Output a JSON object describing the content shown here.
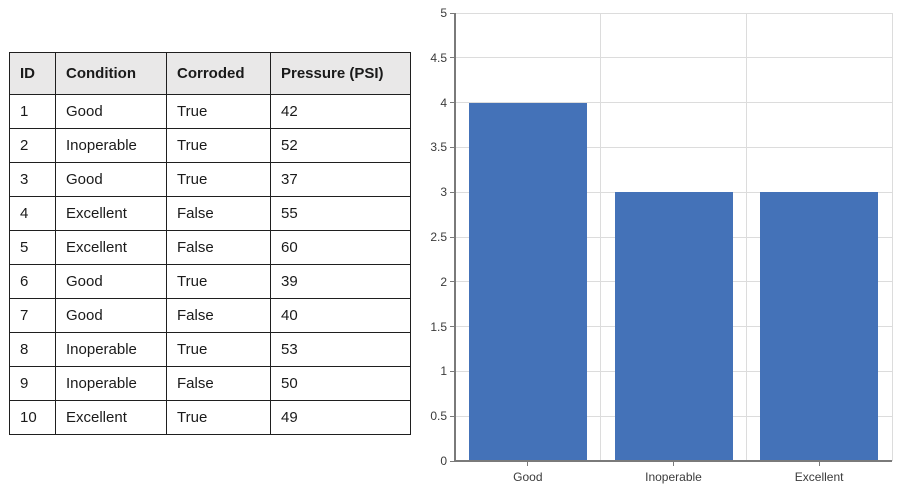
{
  "table": {
    "columns": [
      "ID",
      "Condition",
      "Corroded",
      "Pressure (PSI)"
    ],
    "rows": [
      [
        "1",
        "Good",
        "True",
        "42"
      ],
      [
        "2",
        "Inoperable",
        "True",
        "52"
      ],
      [
        "3",
        "Good",
        "True",
        "37"
      ],
      [
        "4",
        "Excellent",
        "False",
        "55"
      ],
      [
        "5",
        "Excellent",
        "False",
        "60"
      ],
      [
        "6",
        "Good",
        "True",
        "39"
      ],
      [
        "7",
        "Good",
        "False",
        "40"
      ],
      [
        "8",
        "Inoperable",
        "True",
        "53"
      ],
      [
        "9",
        "Inoperable",
        "False",
        "50"
      ],
      [
        "10",
        "Excellent",
        "True",
        "49"
      ]
    ]
  },
  "chart_data": {
    "type": "bar",
    "categories": [
      "Good",
      "Inoperable",
      "Excellent"
    ],
    "values": [
      4,
      3,
      3
    ],
    "title": "",
    "xlabel": "",
    "ylabel": "",
    "ylim": [
      0,
      5
    ],
    "ytick_step": 0.5,
    "ytick_labels": [
      "0",
      "0.5",
      "1",
      "1.5",
      "2",
      "2.5",
      "3",
      "3.5",
      "4",
      "4.5",
      "5"
    ],
    "grid": true,
    "legend": false,
    "bar_color": "#4472b8",
    "gridline_color": "#dcdcdc",
    "axis_color": "#7a7a7a",
    "tick_label_color": "#3b3b3b"
  }
}
